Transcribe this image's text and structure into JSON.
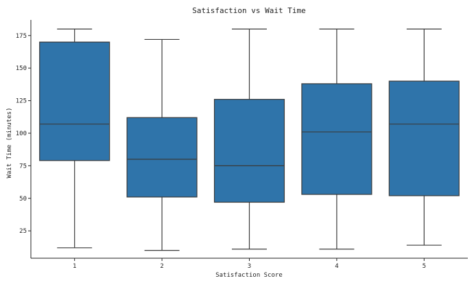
{
  "chart_data": {
    "type": "box",
    "title": "Satisfaction vs Wait Time",
    "xlabel": "Satisfaction Score",
    "ylabel": "Wait Time (minutes)",
    "ylim": [
      4,
      187
    ],
    "yticks": [
      25,
      50,
      75,
      100,
      125,
      150,
      175
    ],
    "grid": false,
    "color": "#2f74aa",
    "categories": [
      "1",
      "2",
      "3",
      "4",
      "5"
    ],
    "boxes": [
      {
        "category": "1",
        "min": 12,
        "q1": 79,
        "median": 107,
        "q3": 170,
        "max": 180
      },
      {
        "category": "2",
        "min": 10,
        "q1": 51,
        "median": 80,
        "q3": 112,
        "max": 172
      },
      {
        "category": "3",
        "min": 11,
        "q1": 47,
        "median": 75,
        "q3": 126,
        "max": 180
      },
      {
        "category": "4",
        "min": 11,
        "q1": 53,
        "median": 101,
        "q3": 138,
        "max": 180
      },
      {
        "category": "5",
        "min": 14,
        "q1": 52,
        "median": 107,
        "q3": 140,
        "max": 180
      }
    ]
  }
}
